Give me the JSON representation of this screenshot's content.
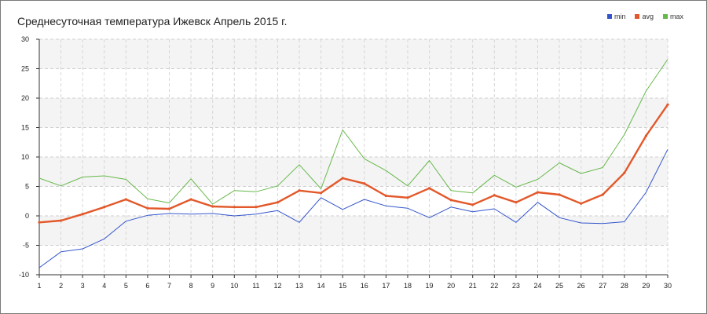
{
  "chart_data": {
    "type": "line",
    "title": "Среднесуточная температура Ижевск  Апрель 2015 г.",
    "xlabel": "",
    "ylabel": "",
    "x": [
      1,
      2,
      3,
      4,
      5,
      6,
      7,
      8,
      9,
      10,
      11,
      12,
      13,
      14,
      15,
      16,
      17,
      18,
      19,
      20,
      21,
      22,
      23,
      24,
      25,
      26,
      27,
      28,
      29,
      30
    ],
    "ylim": [
      -10,
      30
    ],
    "yticks": [
      -10,
      -5,
      0,
      5,
      10,
      15,
      20,
      25,
      30
    ],
    "grid": true,
    "legend_position": "top-right",
    "series": [
      {
        "name": "min",
        "color": "#3355cc",
        "values": [
          -8.8,
          -6.1,
          -5.6,
          -3.9,
          -0.9,
          0.1,
          0.4,
          0.3,
          0.4,
          0.0,
          0.3,
          0.9,
          -1.1,
          3.1,
          1.1,
          2.8,
          1.7,
          1.3,
          -0.3,
          1.5,
          0.7,
          1.2,
          -1.1,
          2.3,
          -0.3,
          -1.2,
          -1.3,
          -1.0,
          4.0,
          11.3
        ]
      },
      {
        "name": "avg",
        "color": "#e2582a",
        "values": [
          -1.1,
          -0.8,
          0.3,
          1.5,
          2.8,
          1.3,
          1.2,
          2.8,
          1.6,
          1.5,
          1.5,
          2.3,
          4.3,
          3.9,
          6.4,
          5.5,
          3.4,
          3.1,
          4.7,
          2.7,
          1.9,
          3.5,
          2.3,
          4.0,
          3.6,
          2.1,
          3.6,
          7.3,
          13.6,
          18.9
        ]
      },
      {
        "name": "max",
        "color": "#66b84a",
        "values": [
          6.4,
          5.1,
          6.6,
          6.8,
          6.2,
          2.9,
          2.2,
          6.3,
          2.0,
          4.3,
          4.1,
          5.1,
          8.7,
          4.6,
          14.6,
          9.7,
          7.7,
          5.1,
          9.4,
          4.3,
          3.9,
          6.9,
          4.9,
          6.2,
          9.0,
          7.2,
          8.2,
          13.8,
          21.2,
          26.6
        ]
      }
    ]
  }
}
